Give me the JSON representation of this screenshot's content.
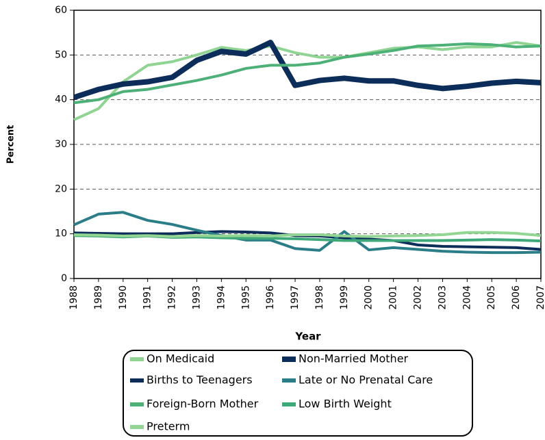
{
  "chart_data": {
    "type": "line",
    "x_label": "Year",
    "y_label": "Percent",
    "x": [
      1988,
      1989,
      1990,
      1991,
      1992,
      1993,
      1994,
      1995,
      1996,
      1997,
      1998,
      1999,
      2000,
      2001,
      2002,
      2003,
      2004,
      2005,
      2006,
      2007
    ],
    "xlim": [
      1988,
      2007
    ],
    "xticks": [
      1988,
      1989,
      1990,
      1991,
      1992,
      1993,
      1994,
      1995,
      1996,
      1997,
      1998,
      1999,
      2000,
      2001,
      2002,
      2003,
      2004,
      2005,
      2006,
      2007
    ],
    "ylim": [
      0,
      60
    ],
    "yticks": [
      0,
      10,
      20,
      30,
      40,
      50,
      60
    ],
    "grid": true,
    "legend": "bottom",
    "series": [
      {
        "name": "On Medicaid",
        "color": "#8fd492",
        "line_width": 4,
        "values": [
          35.5,
          38,
          44,
          47.7,
          48.5,
          50,
          51.7,
          51,
          52,
          50.5,
          49.5,
          49.5,
          50.5,
          51.5,
          51.8,
          51.2,
          51.8,
          51.8,
          52.8,
          52
        ]
      },
      {
        "name": "Non-Married Mother",
        "color": "#0c2d5a",
        "line_width": 8,
        "values": [
          40.5,
          42.3,
          43.5,
          44,
          45,
          48.8,
          50.8,
          50.2,
          52.8,
          43.2,
          44.3,
          44.8,
          44.2,
          44.2,
          43.2,
          42.5,
          43,
          43.7,
          44.1,
          43.8
        ]
      },
      {
        "name": "Births to Teenagers",
        "color": "#0c2d5a",
        "line_width": 4,
        "values": [
          10.2,
          10.1,
          10,
          10,
          10,
          10.3,
          10.5,
          10.4,
          10.2,
          9.6,
          9.5,
          9.1,
          8.8,
          8.5,
          7.5,
          7.2,
          7.1,
          7,
          6.9,
          6.5
        ]
      },
      {
        "name": "Late or No Prenatal Care",
        "color": "#2b7d88",
        "line_width": 4,
        "values": [
          12,
          14.4,
          14.8,
          13,
          12.1,
          10.8,
          9.6,
          8.6,
          8.6,
          6.7,
          6.3,
          10.5,
          6.4,
          6.9,
          6.5,
          6.1,
          5.9,
          5.8,
          5.8,
          5.9
        ]
      },
      {
        "name": "Foreign-Born Mother",
        "color": "#4cb077",
        "line_width": 4,
        "values": [
          39.3,
          40,
          41.8,
          42.3,
          43.3,
          44.3,
          45.5,
          47,
          47.7,
          47.7,
          48.2,
          49.5,
          50.2,
          51,
          52,
          52.2,
          52.5,
          52.3,
          51.8,
          52
        ]
      },
      {
        "name": "Low Birth Weight",
        "color": "#3fa878",
        "line_width": 4,
        "values": [
          9.6,
          9.5,
          9.3,
          9.5,
          9.2,
          9.3,
          9.1,
          9,
          9,
          8.9,
          8.7,
          8.5,
          8.5,
          8.5,
          8.5,
          8.5,
          8.6,
          8.7,
          8.6,
          8.4
        ]
      },
      {
        "name": "Preterm",
        "color": "#93d694",
        "line_width": 4,
        "values": [
          9.8,
          9.7,
          9.5,
          9.6,
          9.4,
          9.6,
          9.5,
          9.6,
          9.5,
          9.8,
          9.8,
          9.5,
          9.4,
          9.5,
          9.6,
          9.8,
          10.3,
          10.3,
          10.1,
          9.6
        ]
      }
    ]
  }
}
